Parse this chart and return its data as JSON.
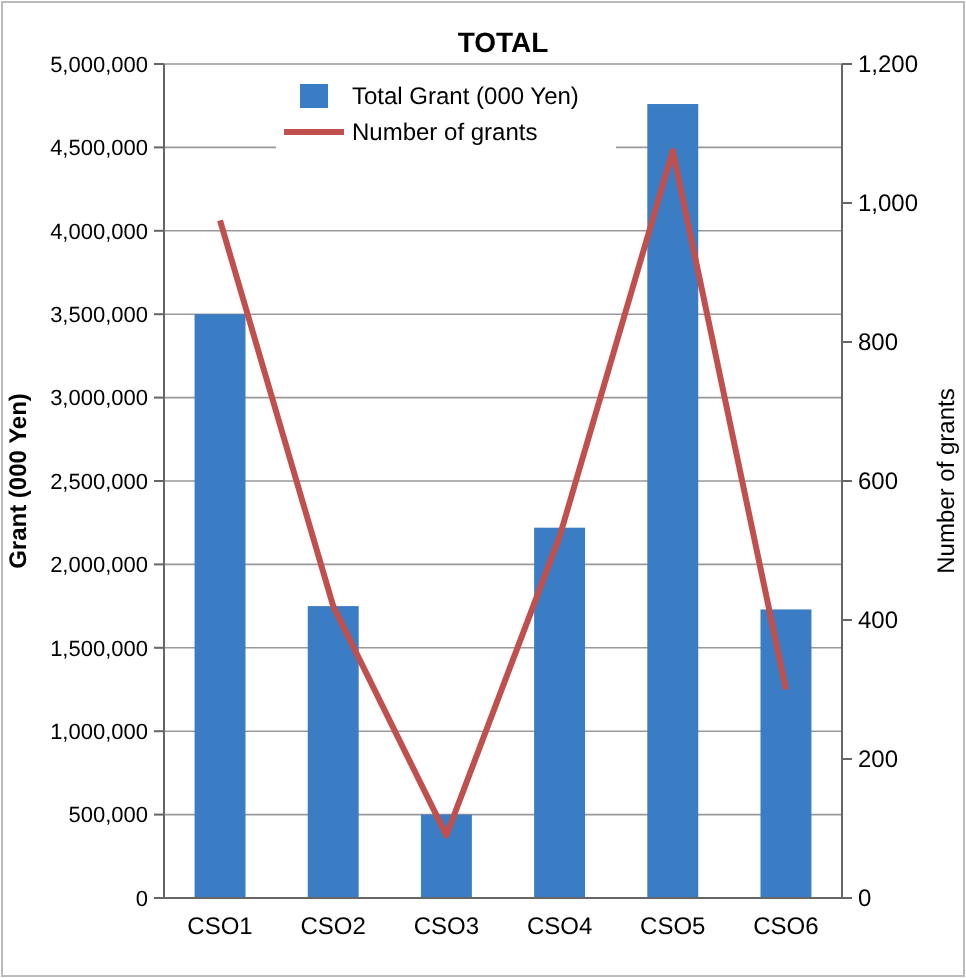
{
  "chart_data": {
    "type": "bar",
    "title": "TOTAL",
    "ylabel": "Grant (000 Yen)",
    "y2label": "Number of grants",
    "categories": [
      "CSO1",
      "CSO2",
      "CSO3",
      "CSO4",
      "CSO5",
      "CSO6"
    ],
    "series": [
      {
        "name": "Total Grant (000 Yen)",
        "color": "#3a7dc4",
        "values": [
          3500000,
          1750000,
          500000,
          2220000,
          4760000,
          1730000
        ]
      },
      {
        "name": "Number of grants",
        "type": "line",
        "axis": "y2",
        "color": "#c0504d",
        "values": [
          975,
          420,
          90,
          520,
          1075,
          300
        ]
      }
    ],
    "ylim": [
      0,
      5000000
    ],
    "yticks": [
      {
        "value": 0,
        "label": "0"
      },
      {
        "value": 500000,
        "label": "500,000"
      },
      {
        "value": 1000000,
        "label": "1,000,000"
      },
      {
        "value": 1500000,
        "label": "1,500,000"
      },
      {
        "value": 2000000,
        "label": "2,000,000"
      },
      {
        "value": 2500000,
        "label": "2,500,000"
      },
      {
        "value": 3000000,
        "label": "3,000,000"
      },
      {
        "value": 3500000,
        "label": "3,500,000"
      },
      {
        "value": 4000000,
        "label": "4,000,000"
      },
      {
        "value": 4500000,
        "label": "4,500,000"
      },
      {
        "value": 5000000,
        "label": "5,000,000"
      }
    ],
    "y2lim": [
      0,
      1200
    ],
    "y2ticks": [
      0,
      200,
      400,
      600,
      800,
      {
        "value": 1000,
        "label": "1,000"
      },
      {
        "value": 1200,
        "label": "1,200"
      }
    ],
    "grid": "y",
    "legend": "top"
  }
}
